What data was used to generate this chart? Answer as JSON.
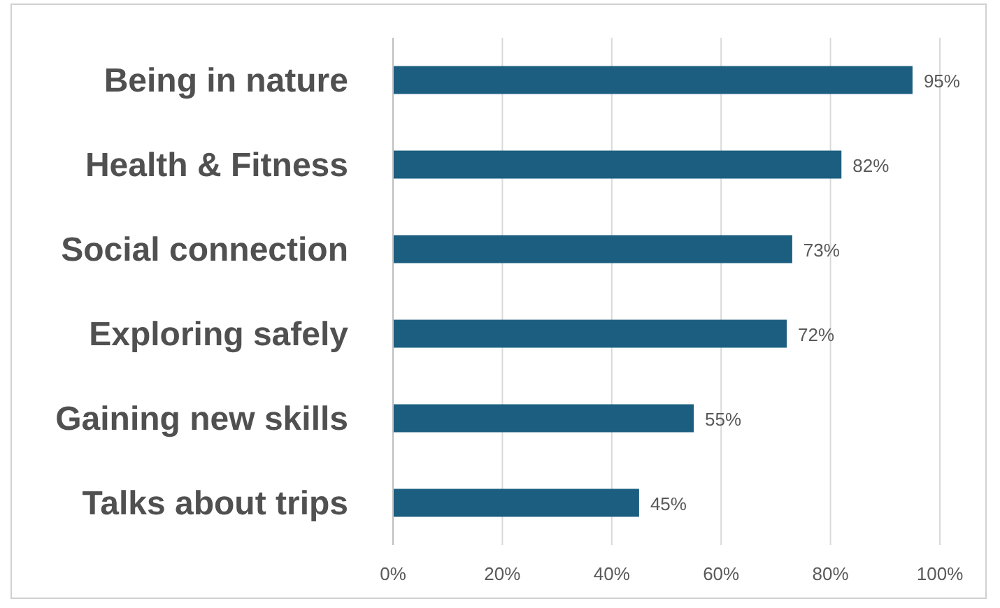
{
  "chart_data": {
    "type": "bar",
    "orientation": "horizontal",
    "categories": [
      "Being in nature",
      "Health & Fitness",
      "Social connection",
      "Exploring safely",
      "Gaining new skills",
      "Talks about trips"
    ],
    "values": [
      95,
      82,
      73,
      72,
      55,
      45
    ],
    "value_labels": [
      "95%",
      "82%",
      "73%",
      "72%",
      "55%",
      "45%"
    ],
    "color": "#1b5e80",
    "xlim": [
      0,
      100
    ],
    "xticks": [
      {
        "value": 0,
        "label": "0%"
      },
      {
        "value": 20,
        "label": "20%"
      },
      {
        "value": 40,
        "label": "40%"
      },
      {
        "value": 60,
        "label": "60%"
      },
      {
        "value": 80,
        "label": "80%"
      },
      {
        "value": 100,
        "label": "100%"
      }
    ],
    "grid": "x"
  }
}
